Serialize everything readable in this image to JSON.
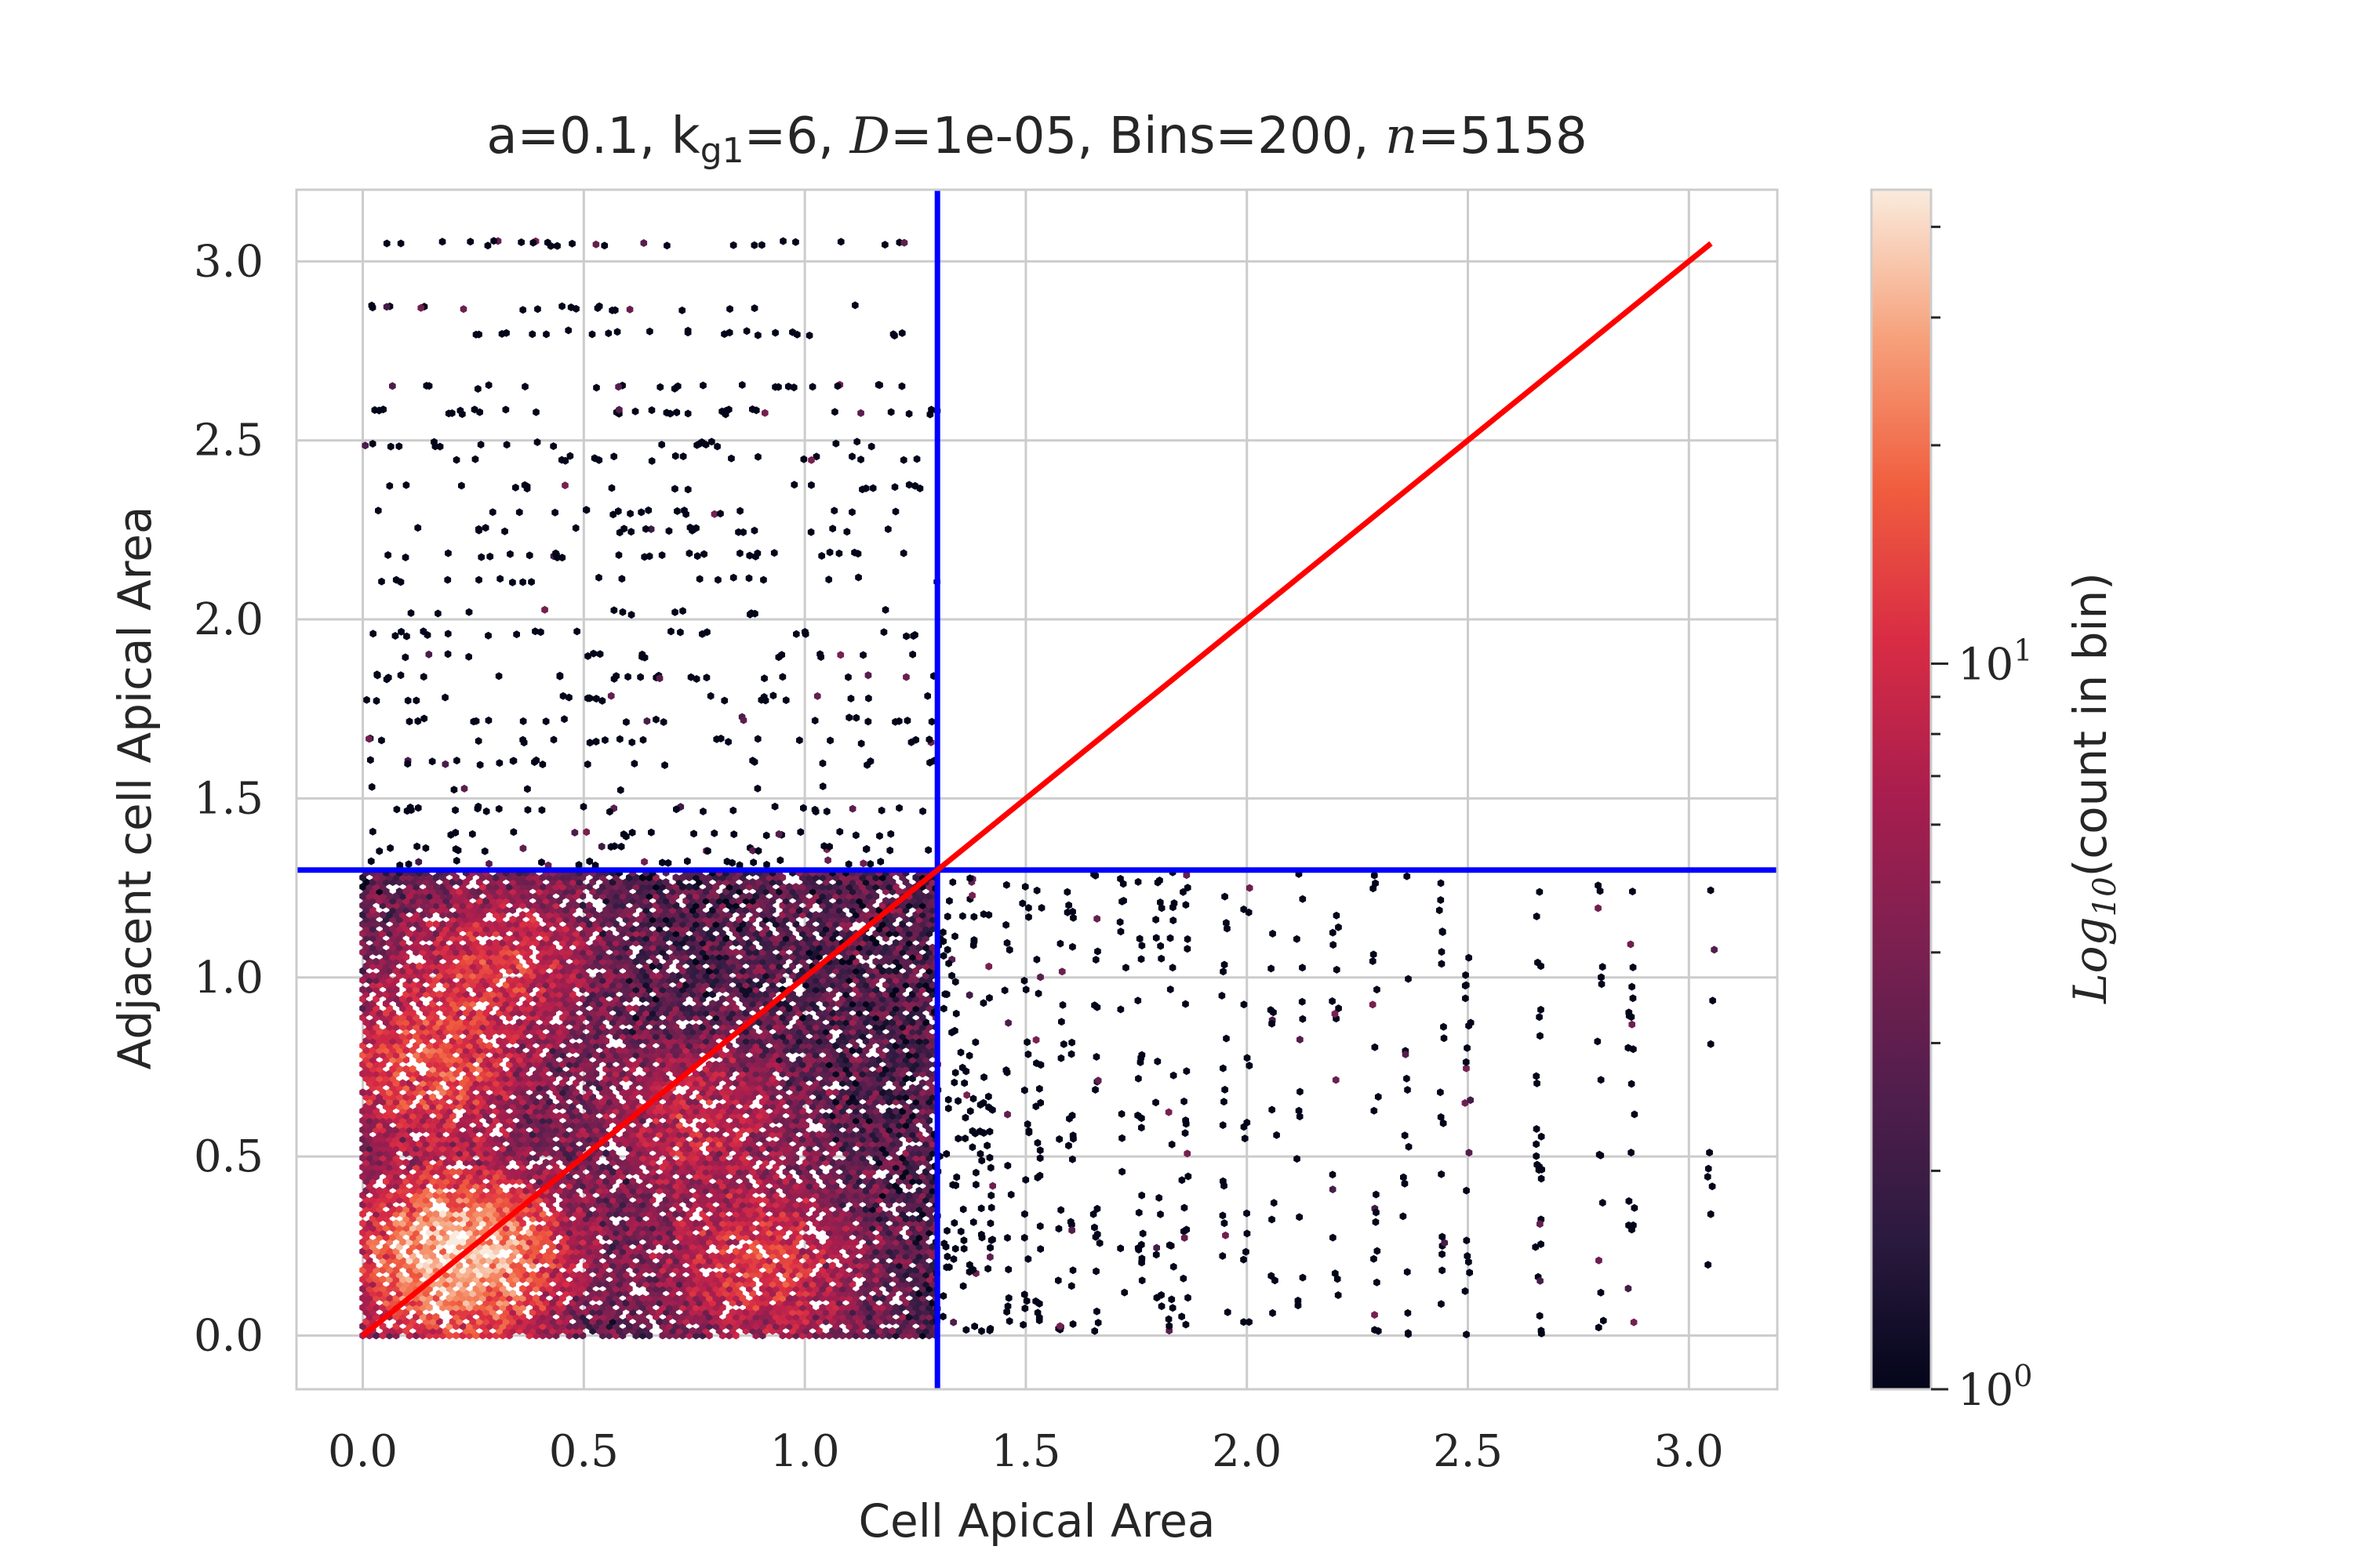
{
  "chart_data": {
    "type": "heatmap",
    "subtype": "hexbin",
    "title": "a=0.1, k_g1=6, D=1e-05, Bins=200, n=5158",
    "title_parts": {
      "prefix": "a=0.1, k",
      "sub": "g1",
      "mid1": "=6, ",
      "d_var": "D",
      "mid2": "=1e-05, Bins=200, ",
      "n_var": "n",
      "suffix": "=5158"
    },
    "xlabel": "Cell Apical Area",
    "ylabel": "Adjacent cell Apical Area",
    "xlim": [
      -0.15,
      3.2
    ],
    "ylim": [
      -0.15,
      3.2
    ],
    "xticks": [
      0.0,
      0.5,
      1.0,
      1.5,
      2.0,
      2.5,
      3.0
    ],
    "yticks": [
      0.0,
      0.5,
      1.0,
      1.5,
      2.0,
      2.5,
      3.0
    ],
    "tick_labels": [
      "0.0",
      "0.5",
      "1.0",
      "1.5",
      "2.0",
      "2.5",
      "3.0"
    ],
    "grid": true,
    "gridsize": 200,
    "n_points": 5158,
    "colormap": "rocket",
    "color_scale": "log",
    "colorbar": {
      "label": "Log10(count in bin)",
      "label_parts": {
        "base": "Log",
        "sub": "10",
        "rest": "(count in bin)"
      },
      "ticks": [
        {
          "value": 1,
          "base": "10",
          "exp": "0"
        },
        {
          "value": 10,
          "base": "10",
          "exp": "1"
        }
      ],
      "range": [
        1,
        45
      ]
    },
    "reference_lines": [
      {
        "kind": "vertical",
        "x": 1.3,
        "color": "#0000ff"
      },
      {
        "kind": "horizontal",
        "y": 1.3,
        "color": "#0000ff"
      },
      {
        "kind": "diagonal",
        "from": [
          0,
          0
        ],
        "to": [
          3.05,
          3.05
        ],
        "color": "#ff0000"
      }
    ],
    "density_regions": [
      {
        "x": [
          0.0,
          1.3
        ],
        "y": [
          0.0,
          1.3
        ],
        "description": "dense"
      },
      {
        "x": [
          0.0,
          1.3
        ],
        "y": [
          1.3,
          3.05
        ],
        "description": "sparse"
      },
      {
        "x": [
          1.3,
          3.05
        ],
        "y": [
          0.0,
          1.3
        ],
        "description": "sparse"
      }
    ],
    "hotspots": [
      {
        "x": 0.22,
        "y": 0.22,
        "intensity": 40
      },
      {
        "x": 0.15,
        "y": 0.75,
        "intensity": 15
      },
      {
        "x": 0.3,
        "y": 1.05,
        "intensity": 10
      },
      {
        "x": 0.9,
        "y": 0.2,
        "intensity": 12
      },
      {
        "x": 0.75,
        "y": 0.6,
        "intensity": 8
      }
    ]
  },
  "colors": {
    "grid": "#cccccc",
    "axes_edge": "#cccccc",
    "text": "#262626",
    "vline": "#0000ff",
    "hline": "#0000ff",
    "diagonal": "#ff0000"
  }
}
